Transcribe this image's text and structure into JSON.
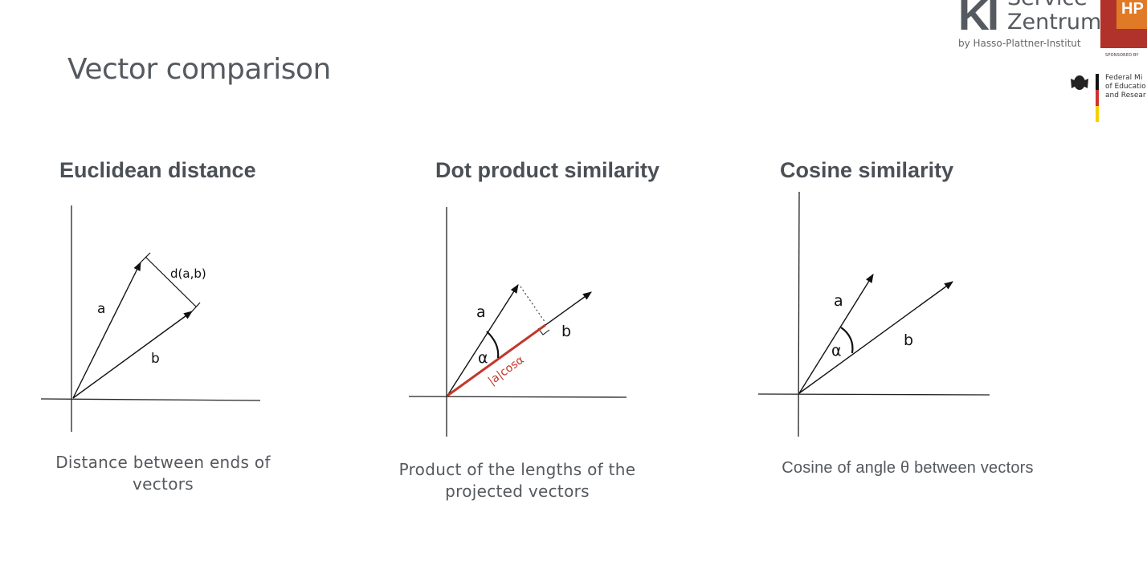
{
  "slide": {
    "title": "Vector comparison"
  },
  "logo": {
    "ki": "KI",
    "service": "Service",
    "zentrum": "Zentrum",
    "by": "by Hasso-Plattner-Institut",
    "hpi": "HP",
    "sponsored": "SPONSORED BY",
    "ministry": [
      "Federal Mi",
      "of Educatio",
      "and Resear"
    ],
    "accent_colors": {
      "hpi_red": "#b1322a",
      "hpi_orange": "#e07a26",
      "flag_black": "#111111",
      "flag_red": "#d0312d",
      "flag_gold": "#f5d000"
    }
  },
  "columns": {
    "euclidean": {
      "heading": "Euclidean distance",
      "caption_line1": "Distance between ends of",
      "caption_line2": "vectors",
      "labels": {
        "a": "a",
        "b": "b",
        "d": "d(a,b)"
      }
    },
    "dot": {
      "heading": "Dot product similarity",
      "caption_line1": "Product of the lengths of the",
      "caption_line2": "projected vectors",
      "labels": {
        "a": "a",
        "b": "b",
        "alpha": "α",
        "proj": "|a|cosα"
      },
      "projection_color": "#c0392b"
    },
    "cosine": {
      "heading": "Cosine similarity",
      "caption_line1": "Cosine of angle θ between vectors",
      "labels": {
        "a": "a",
        "b": "b",
        "alpha": "α"
      }
    }
  }
}
